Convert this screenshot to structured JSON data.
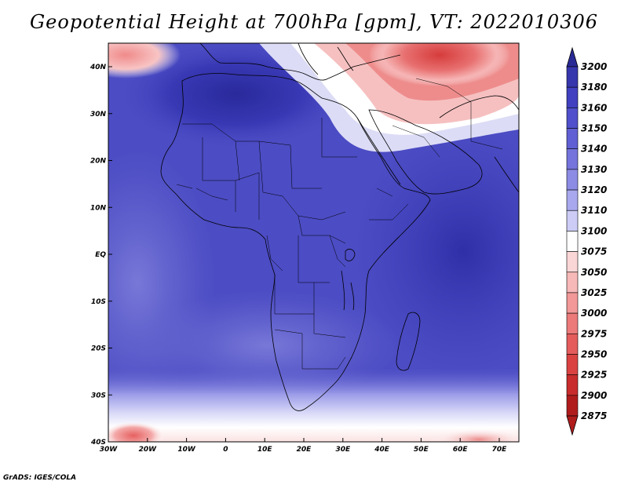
{
  "title": "Geopotential Height at 700hPa [gpm], VT: 2022010306",
  "footer": "GrADS: IGES/COLA",
  "map": {
    "lat_labels": [
      "40N",
      "30N",
      "20N",
      "10N",
      "EQ",
      "10S",
      "20S",
      "30S",
      "40S"
    ],
    "lon_labels": [
      "30W",
      "20W",
      "10W",
      "0",
      "10E",
      "20E",
      "30E",
      "40E",
      "50E",
      "60E",
      "70E"
    ]
  },
  "colorbar": {
    "levels": [
      "3200",
      "3180",
      "3160",
      "3150",
      "3140",
      "3130",
      "3120",
      "3110",
      "3100",
      "3075",
      "3050",
      "3025",
      "3000",
      "2975",
      "2950",
      "2925",
      "2900",
      "2875"
    ],
    "colors": [
      "#2a2a96",
      "#3636ad",
      "#4040c0",
      "#5050cc",
      "#6060d4",
      "#7474dc",
      "#8c8ce4",
      "#a8a8ee",
      "#ccccf6",
      "#ffffff",
      "#fbd6d6",
      "#f7b8b8",
      "#f29898",
      "#ec7a7a",
      "#e45c5c",
      "#da4242",
      "#c82c2c",
      "#b01c1c"
    ]
  },
  "colors": {
    "deep_blue": "#2c2ca8",
    "mid_blue": "#4b4bc6",
    "light_blue": "#7c7cdc",
    "white": "#ffffff",
    "light_red": "#f4a6a6",
    "red": "#e05050"
  }
}
